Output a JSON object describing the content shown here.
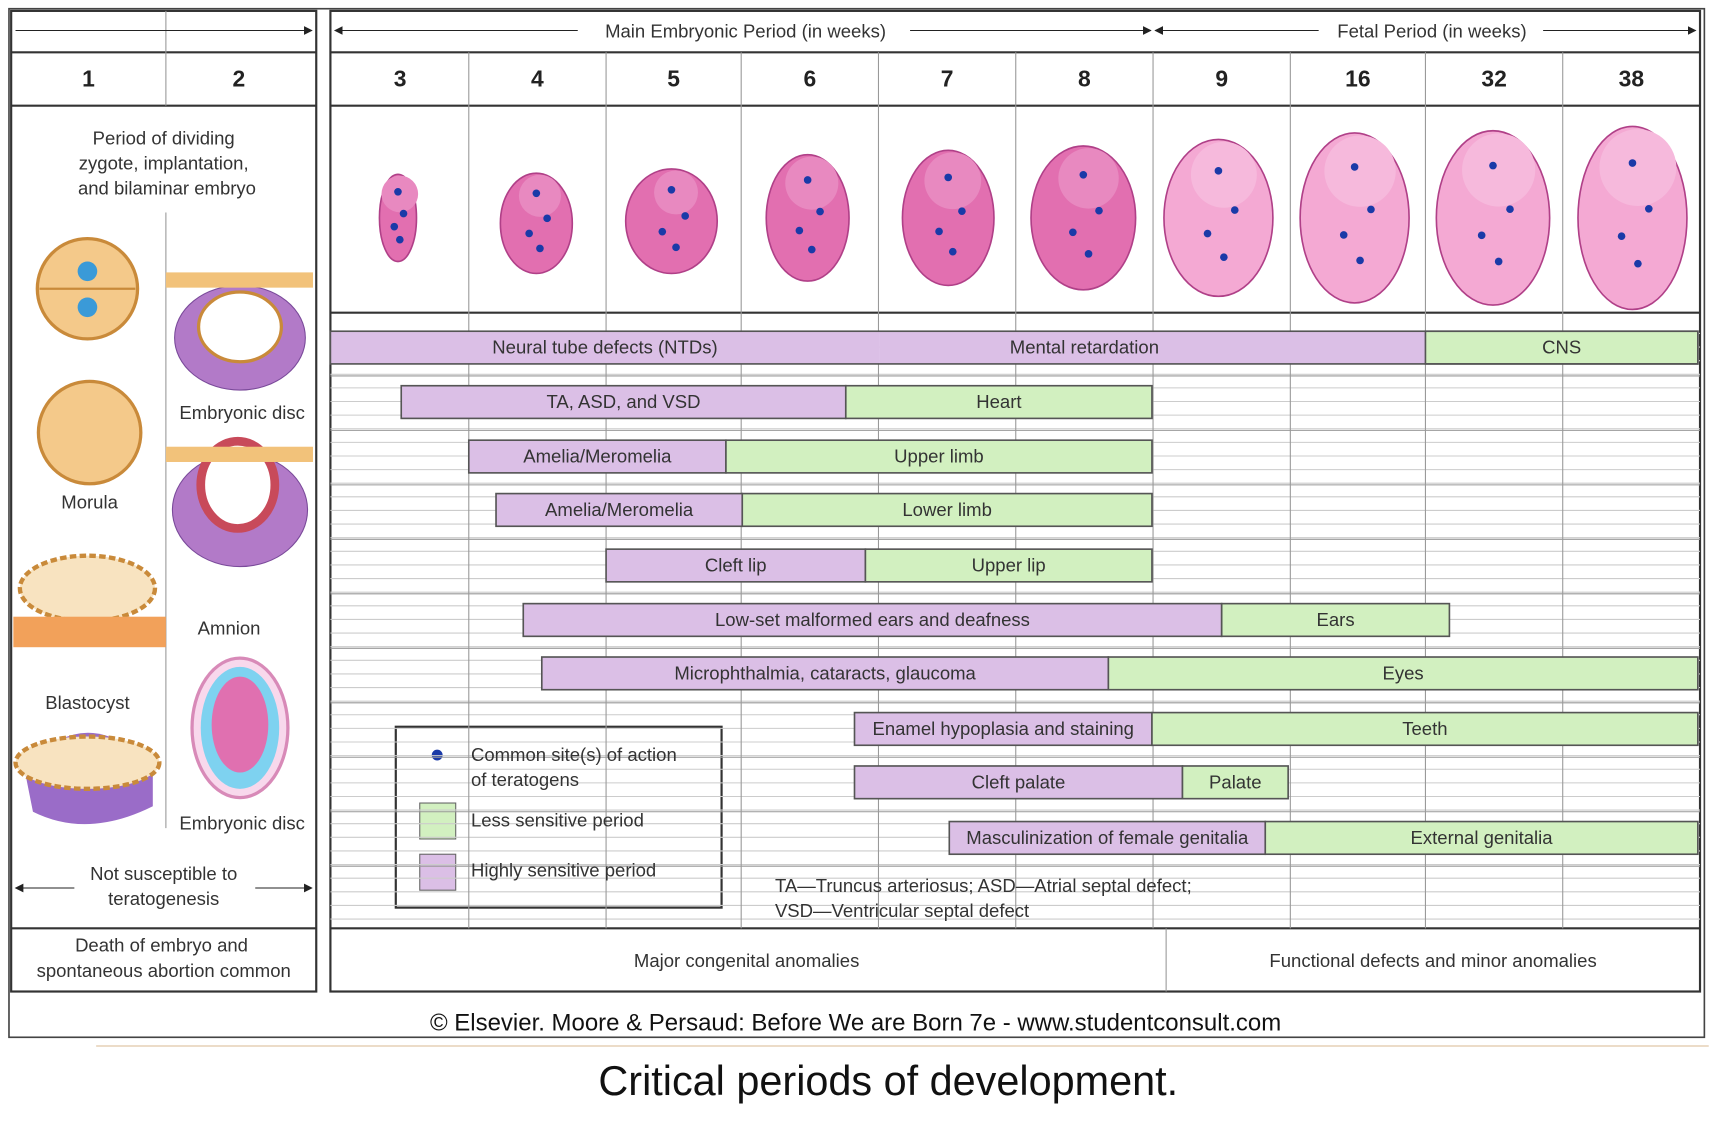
{
  "header": {
    "main_period": "Main Embryonic Period (in weeks)",
    "fetal_period": "Fetal Period (in weeks)"
  },
  "weeks": [
    "1",
    "2",
    "3",
    "4",
    "5",
    "6",
    "7",
    "8",
    "9",
    "16",
    "32",
    "38"
  ],
  "left_panel": {
    "period_text": [
      "Period of dividing",
      "zygote, implantation,",
      "and bilaminar embryo"
    ],
    "labels": [
      "Embryonic disc",
      "Morula",
      "Amnion",
      "Blastocyst",
      "Embryonic disc"
    ],
    "not_susceptible": [
      "Not susceptible to",
      "teratogenesis"
    ],
    "death": [
      "Death of embryo and",
      "spontaneous abortion common"
    ]
  },
  "rows": [
    {
      "segments": [
        "Neural tube defects (NTDs)",
        "Mental retardation",
        "CNS"
      ]
    },
    {
      "segments": [
        "TA, ASD, and VSD",
        "Heart"
      ]
    },
    {
      "segments": [
        "Amelia/Meromelia",
        "Upper limb"
      ]
    },
    {
      "segments": [
        "Amelia/Meromelia",
        "Lower limb"
      ]
    },
    {
      "segments": [
        "Cleft lip",
        "Upper lip"
      ]
    },
    {
      "segments": [
        "Low-set malformed ears and deafness",
        "Ears"
      ]
    },
    {
      "segments": [
        "Microphthalmia, cataracts, glaucoma",
        "Eyes"
      ]
    },
    {
      "segments": [
        "Enamel hypoplasia and staining",
        "Teeth"
      ]
    },
    {
      "segments": [
        "Cleft palate",
        "Palate"
      ]
    },
    {
      "segments": [
        "Masculinization of female genitalia",
        "External genitalia"
      ]
    }
  ],
  "legend": {
    "sites": [
      "Common site(s) of action",
      "of teratogens"
    ],
    "less": "Less sensitive period",
    "highly": "Highly sensitive period"
  },
  "abbreviations": [
    "TA—Truncus arteriosus; ASD—Atrial septal defect;",
    "VSD—Ventricular septal defect"
  ],
  "footer": {
    "major": "Major congenital anomalies",
    "functional": "Functional defects and minor anomalies"
  },
  "copyright": "© Elsevier. Moore & Persaud: Before We are Born 7e - www.studentconsult.com",
  "caption": "Critical periods of development."
}
